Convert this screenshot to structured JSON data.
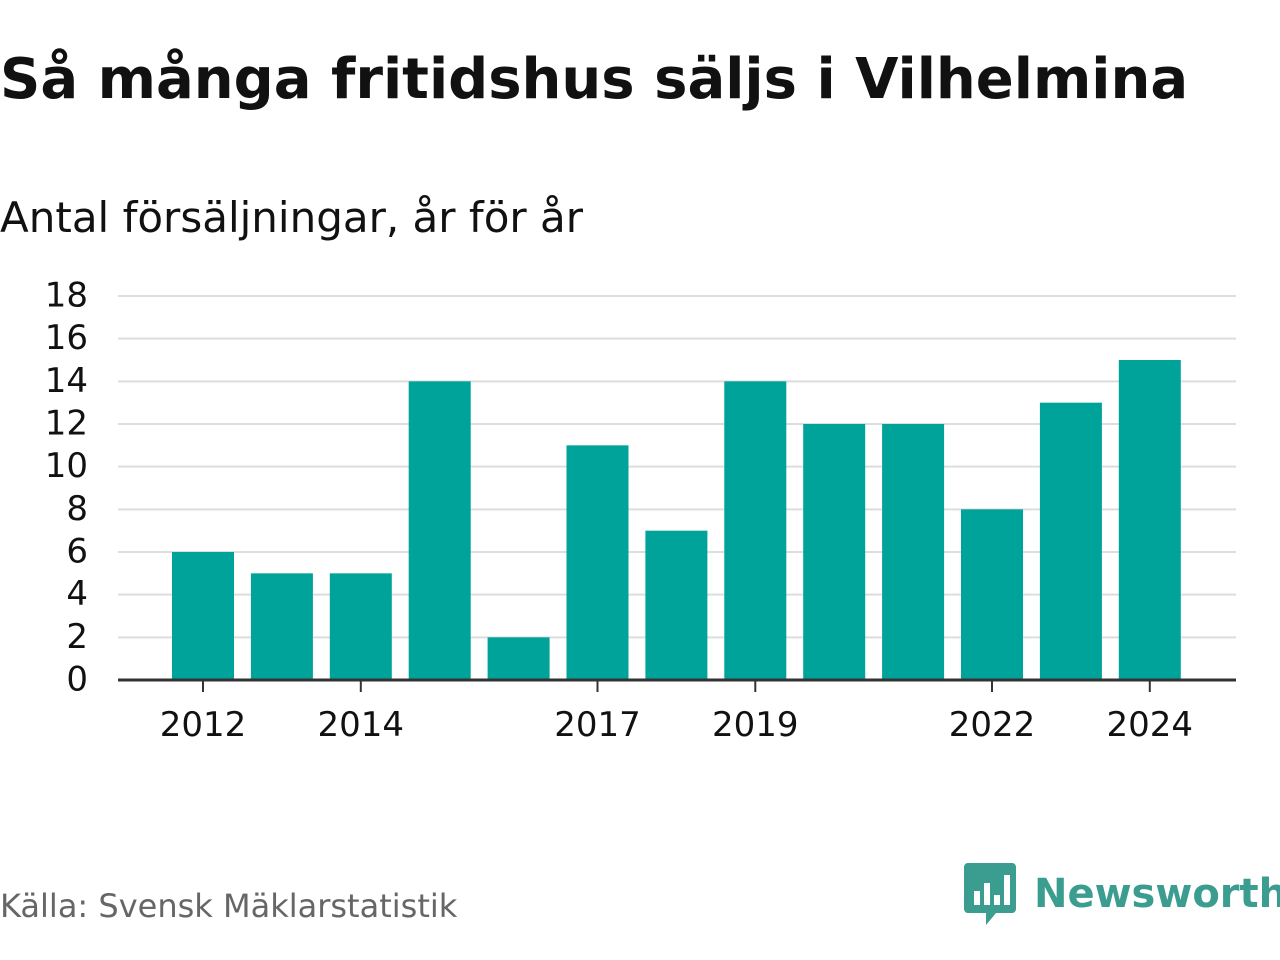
{
  "title": "Så många fritidshus säljs i Vilhelmina",
  "subtitle": "Antal försäljningar, år för år",
  "source": "Källa: Svensk Mäklarstatistik",
  "brand": {
    "name": "Newsworthy",
    "icon": "newsworthy-logo-icon",
    "color": "#3a9d8f"
  },
  "colors": {
    "bar": "#00a39a",
    "grid": "#dddddd",
    "axis": "#333333",
    "text": "#111111",
    "source_text": "#666666"
  },
  "chart_data": {
    "type": "bar",
    "categories": [
      "2012",
      "2013",
      "2014",
      "2015",
      "2016",
      "2017",
      "2018",
      "2019",
      "2020",
      "2021",
      "2022",
      "2023",
      "2024"
    ],
    "values": [
      6,
      5,
      5,
      14,
      2,
      11,
      7,
      14,
      12,
      12,
      8,
      13,
      15
    ],
    "x_tick_labels": [
      "2012",
      "2014",
      "2017",
      "2019",
      "2022",
      "2024"
    ],
    "y_ticks": [
      0,
      2,
      4,
      6,
      8,
      10,
      12,
      14,
      16,
      18
    ],
    "ylim": [
      0,
      18
    ],
    "grid": true,
    "legend": "none",
    "xlabel": "",
    "ylabel": ""
  }
}
